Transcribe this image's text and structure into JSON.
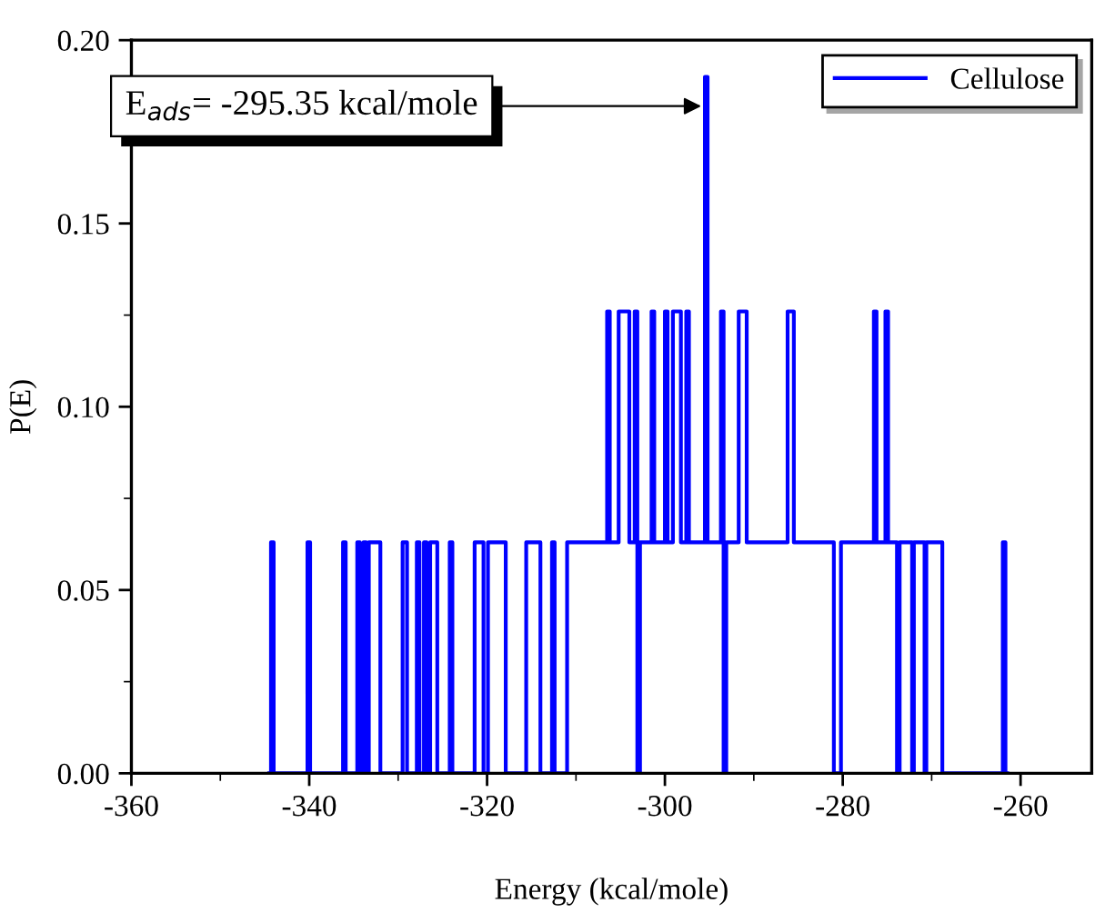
{
  "chart_data": {
    "type": "step",
    "xlabel": "Energy (kcal/mole)",
    "ylabel": "P(E)",
    "xlim": [
      -360,
      -252
    ],
    "xticks": [
      -360,
      -340,
      -320,
      -300,
      -280,
      -260
    ],
    "ylim": [
      0,
      0.2
    ],
    "yticks": [
      {
        "value": 0,
        "label": "0.00"
      },
      {
        "value": 0.05,
        "label": "0.05"
      },
      {
        "value": 0.1,
        "label": "0.10"
      },
      {
        "value": 0.15,
        "label": "0.15"
      },
      {
        "value": 0.2,
        "label": "0.20"
      }
    ],
    "legend": "top right",
    "grid": false,
    "annotations": [
      {
        "text": "E$_{ads}$= -295.35 kcal/mole",
        "x": -295.35,
        "y": 0.182
      }
    ],
    "series": [
      {
        "name": "Cellulose",
        "color": "#0000ff",
        "x": [
          -344.5,
          -344.3,
          -344.0,
          -340.2,
          -339.9,
          -336.2,
          -335.9,
          -334.6,
          -334.3,
          -333.9,
          -333.6,
          -333.3,
          -332.0,
          -329.5,
          -329.0,
          -327.9,
          -327.6,
          -327.1,
          -326.8,
          -326.4,
          -325.6,
          -324.2,
          -323.9,
          -321.4,
          -320.4,
          -319.9,
          -317.9,
          -315.6,
          -314.0,
          -312.7,
          -312.4,
          -311.0,
          -306.5,
          -306.2,
          -305.2,
          -304.0,
          -303.4,
          -303.1,
          -302.8,
          -301.5,
          -301.2,
          -300.0,
          -299.7,
          -299.1,
          -298.2,
          -297.6,
          -297.3,
          -295.5,
          -295.2,
          -293.7,
          -293.4,
          -293.1,
          -291.7,
          -290.8,
          -286.2,
          -285.5,
          -281.0,
          -280.2,
          -276.5,
          -276.2,
          -275.2,
          -274.9,
          -273.9,
          -273.6,
          -272.2,
          -272.0,
          -270.8,
          -270.6,
          -268.8,
          -262.0,
          -261.7,
          -261.5
        ],
        "values": [
          0,
          0.063,
          0,
          0.063,
          0,
          0.063,
          0,
          0.063,
          0,
          0.063,
          0,
          0.063,
          0,
          0.063,
          0,
          0.063,
          0,
          0.063,
          0,
          0.063,
          0,
          0.063,
          0,
          0.063,
          0,
          0.063,
          0,
          0.063,
          0,
          0.063,
          0,
          0.063,
          0.126,
          0.063,
          0.126,
          0.063,
          0.126,
          0,
          0.063,
          0.126,
          0.063,
          0.126,
          0.063,
          0.126,
          0.063,
          0.126,
          0.063,
          0.19,
          0.063,
          0.126,
          0,
          0.063,
          0.126,
          0.063,
          0.126,
          0.063,
          0,
          0.063,
          0.126,
          0.063,
          0.126,
          0.063,
          0,
          0.063,
          0,
          0.063,
          0,
          0.063,
          0,
          0.063,
          0,
          0
        ]
      }
    ]
  }
}
